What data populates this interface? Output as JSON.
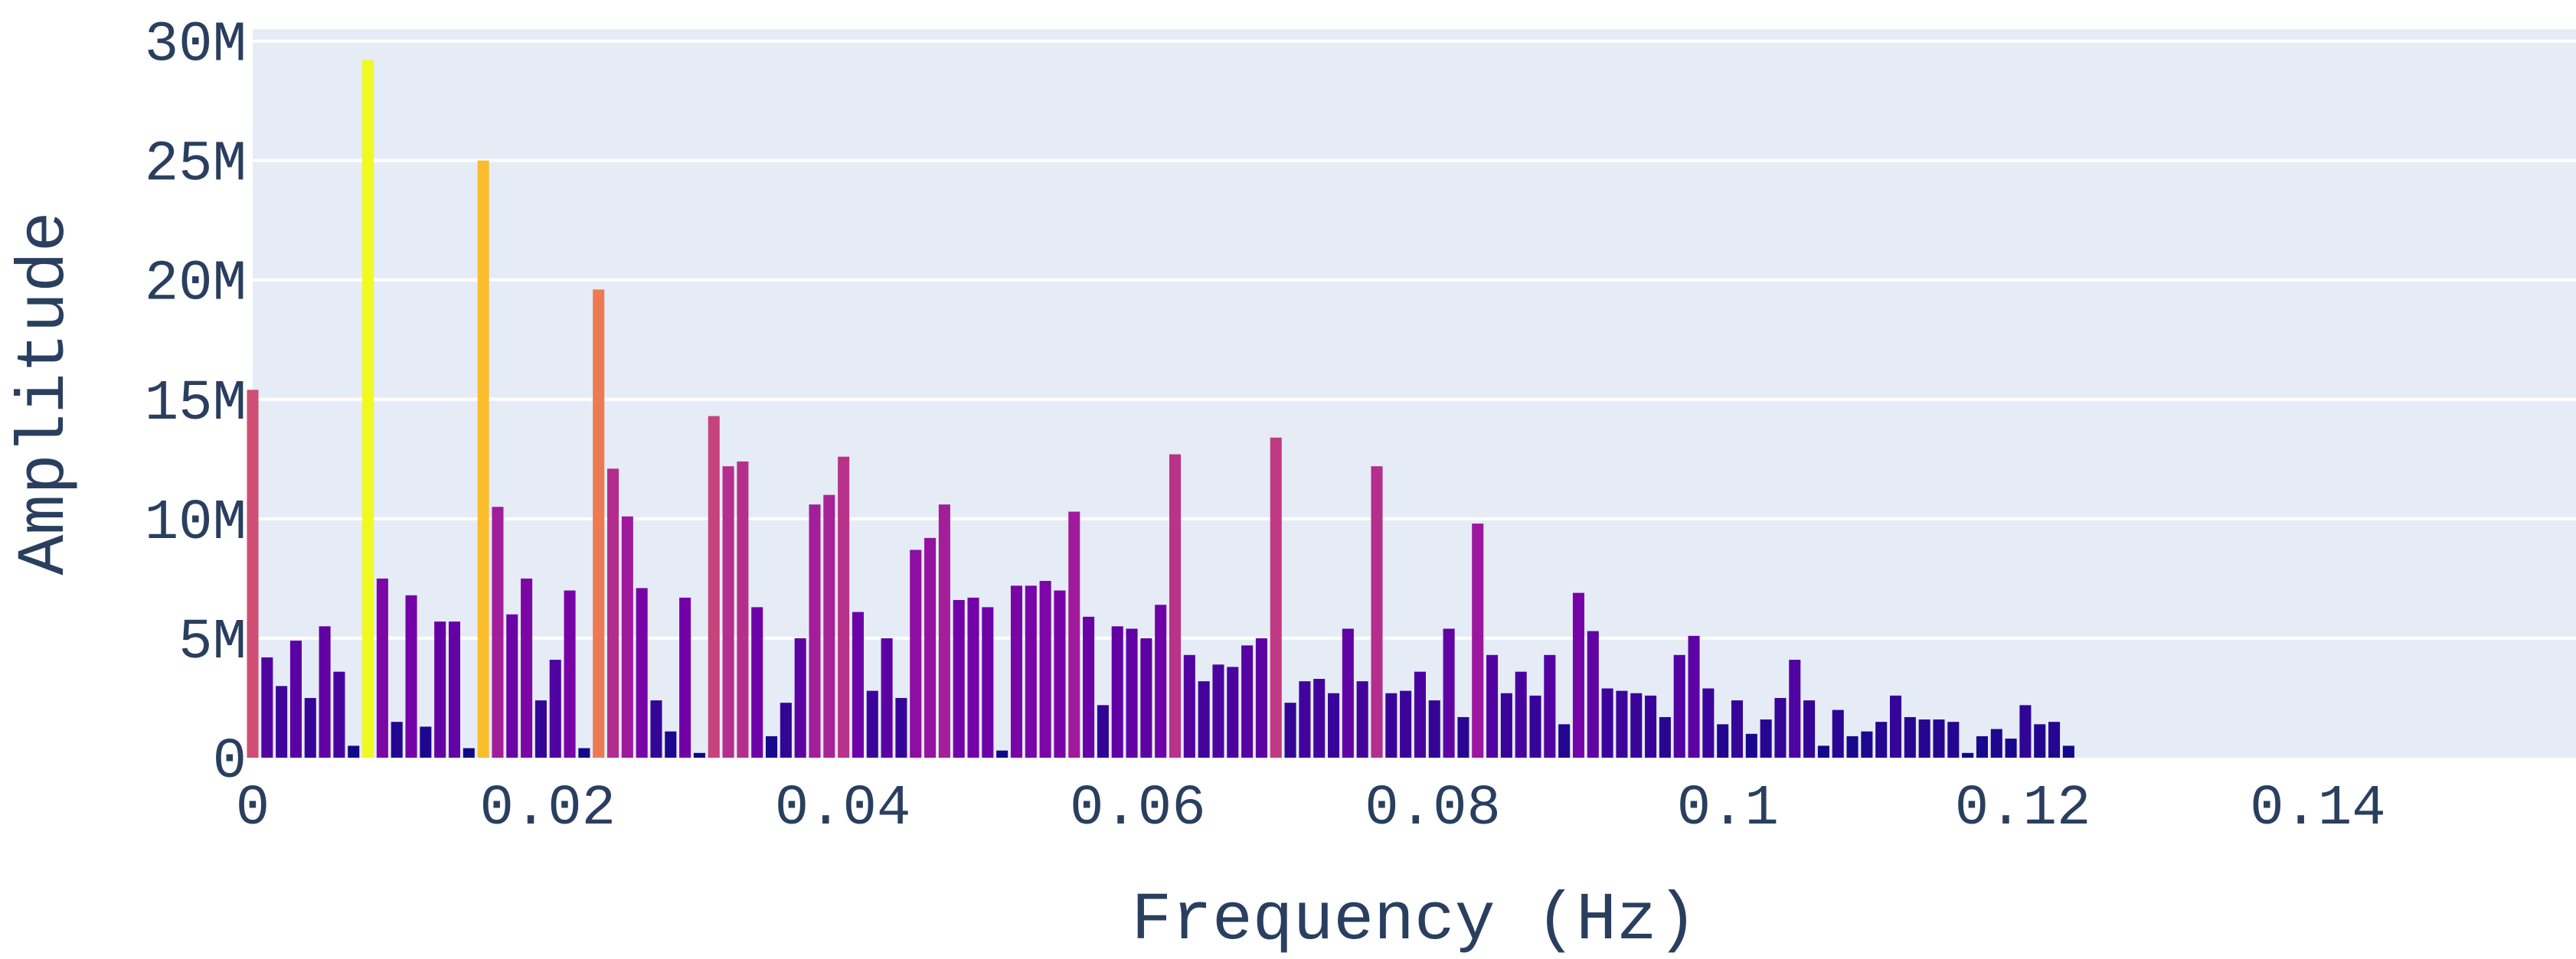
{
  "chart_data": {
    "type": "bar",
    "title": "",
    "xlabel": "Frequency (Hz)",
    "ylabel": "Amplitude",
    "xlim": [
      0,
      0.1575
    ],
    "ylim": [
      0,
      30500000
    ],
    "grid": true,
    "legend": "none",
    "colorscale": "plasma",
    "colors": {
      "plot_background": "#e5ecf6",
      "grid": "#ffffff",
      "text": "#2a3f5f",
      "scale": [
        "#0d0887",
        "#46039f",
        "#7201a8",
        "#9c179e",
        "#bd3786",
        "#d8576b",
        "#ed7953",
        "#fb9f3a",
        "#fdca26",
        "#f0f921"
      ]
    },
    "x_ticks": [
      {
        "value": 0,
        "label": "0"
      },
      {
        "value": 0.02,
        "label": "0.02"
      },
      {
        "value": 0.04,
        "label": "0.04"
      },
      {
        "value": 0.06,
        "label": "0.06"
      },
      {
        "value": 0.08,
        "label": "0.08"
      },
      {
        "value": 0.1,
        "label": "0.1"
      },
      {
        "value": 0.12,
        "label": "0.12"
      },
      {
        "value": 0.14,
        "label": "0.14"
      }
    ],
    "y_ticks": [
      {
        "value": 0,
        "label": "0"
      },
      {
        "value": 5000000,
        "label": "5M"
      },
      {
        "value": 10000000,
        "label": "10M"
      },
      {
        "value": 15000000,
        "label": "15M"
      },
      {
        "value": 20000000,
        "label": "20M"
      },
      {
        "value": 25000000,
        "label": "25M"
      },
      {
        "value": 30000000,
        "label": "30M"
      }
    ],
    "x_step": 0.000977,
    "values": [
      15.4,
      4.2,
      3.0,
      4.9,
      2.5,
      5.5,
      3.6,
      0.5,
      29.2,
      7.5,
      1.5,
      6.8,
      1.3,
      5.7,
      5.7,
      0.4,
      25.0,
      10.5,
      6.0,
      7.5,
      2.4,
      4.1,
      7.0,
      0.4,
      19.6,
      12.1,
      10.1,
      7.1,
      2.4,
      1.1,
      6.7,
      0.2,
      14.3,
      12.2,
      12.4,
      6.3,
      0.9,
      2.3,
      5.0,
      10.6,
      11.0,
      12.6,
      6.1,
      2.8,
      5.0,
      2.5,
      8.7,
      9.2,
      10.6,
      6.6,
      6.7,
      6.3,
      0.3,
      7.2,
      7.2,
      7.4,
      7.0,
      10.3,
      5.9,
      2.2,
      5.5,
      5.4,
      5.0,
      6.4,
      12.7,
      4.3,
      3.2,
      3.9,
      3.8,
      4.7,
      5.0,
      13.4,
      2.3,
      3.2,
      3.3,
      2.7,
      5.4,
      3.2,
      12.2,
      2.7,
      2.8,
      3.6,
      2.4,
      5.4,
      1.7,
      9.8,
      4.3,
      2.7,
      3.6,
      2.6,
      4.3,
      1.4,
      6.9,
      5.3,
      2.9,
      2.8,
      2.7,
      2.6,
      1.7,
      4.3,
      5.1,
      2.9,
      1.4,
      2.4,
      1.0,
      1.6,
      2.5,
      4.1,
      2.4,
      0.5,
      2.0,
      0.9,
      1.1,
      1.5,
      2.6,
      1.7,
      1.6,
      1.6,
      1.5,
      0.2,
      0.9,
      1.2,
      0.8,
      2.2,
      1.4,
      1.5,
      0.5
    ],
    "value_unit_multiplier": 1000000
  }
}
